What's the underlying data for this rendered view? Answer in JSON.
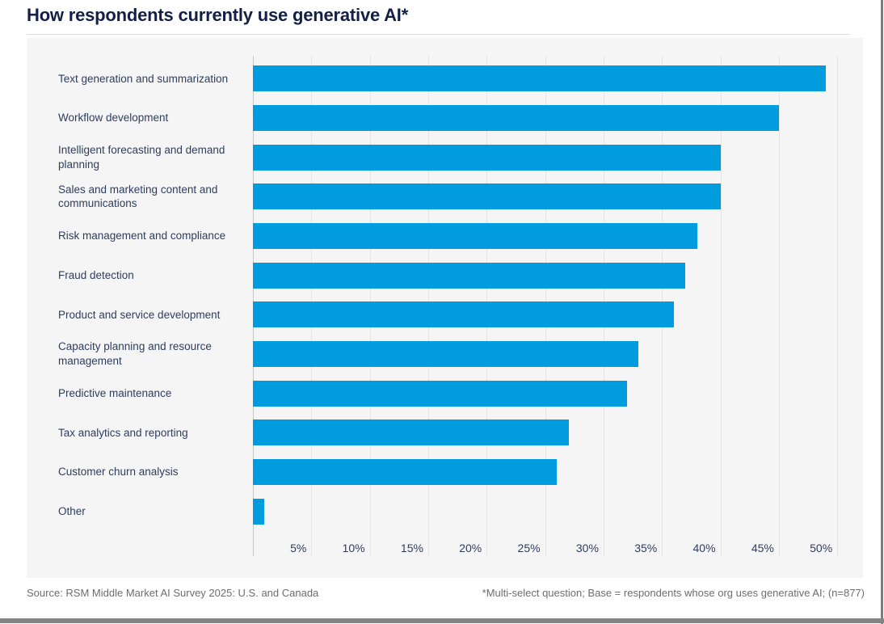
{
  "title": "How respondents currently use generative AI*",
  "chart_data": {
    "type": "bar",
    "orientation": "horizontal",
    "title": "How respondents currently use generative AI*",
    "categories": [
      "Text generation and summarization",
      "Workflow development",
      "Intelligent forecasting and demand planning",
      "Sales and marketing content and communications",
      "Risk management and compliance",
      "Fraud detection",
      "Product and service development",
      "Capacity planning and resource management",
      "Predictive maintenance",
      "Tax analytics and reporting",
      "Customer churn analysis",
      "Other"
    ],
    "values": [
      49,
      45,
      40,
      40,
      38,
      37,
      36,
      33,
      32,
      27,
      26,
      1
    ],
    "unit": "%",
    "xlabel": "",
    "ylabel": "",
    "x_tick_labels": [
      "5%",
      "10%",
      "15%",
      "20%",
      "25%",
      "30%",
      "35%",
      "40%",
      "45%",
      "50%"
    ],
    "x_tick_values": [
      5,
      10,
      15,
      20,
      25,
      30,
      35,
      40,
      45,
      50
    ],
    "xlim": [
      0,
      52.2
    ],
    "grid": "vertical",
    "legend": "none",
    "data_labels": "none",
    "bar_color": "#009cde"
  },
  "footer": {
    "source": "Source: RSM Middle Market AI Survey 2025: U.S. and Canada",
    "note": "*Multi-select question; Base = respondents whose org uses generative AI; (n=877)"
  },
  "colors": {
    "bar": "#009cde",
    "title_text": "#131f45",
    "label_text": "#2e3d5e",
    "panel_background": "#f5f5f5",
    "gridline": "#e4e4e4",
    "axis_line": "#c6c6c8",
    "footer_text": "#6d6d6d",
    "frame": "#7d7d7d"
  }
}
